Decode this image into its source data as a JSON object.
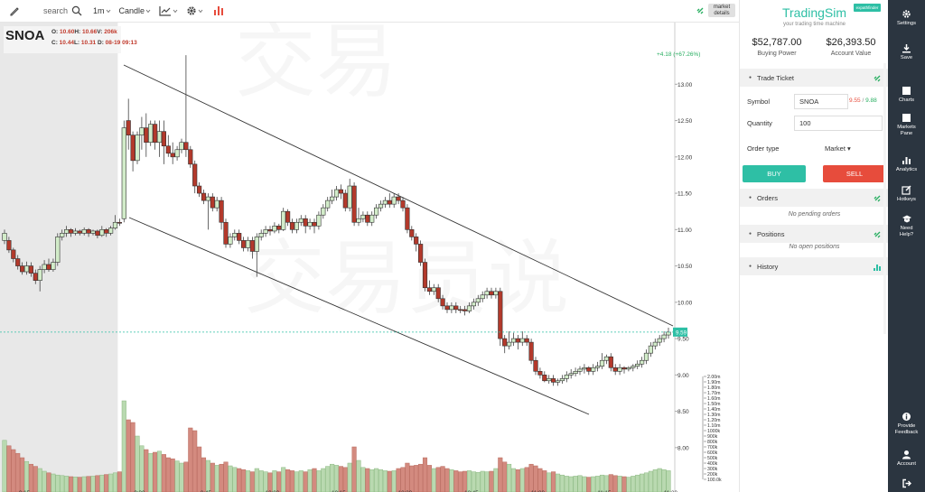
{
  "toolbar": {
    "search_placeholder": "search",
    "interval": "1m",
    "chart_style": "Candle"
  },
  "symbol": {
    "ticker": "SNOA",
    "o_label": "O:",
    "o_val": "10.60",
    "h_label": "H:",
    "h_val": "10.66",
    "v_label": "V:",
    "v_val": "206k",
    "c_label": "C:",
    "c_val": "10.44",
    "l_label": "L:",
    "l_val": "10.31",
    "d_label": "D:",
    "d_val": "08-19 09:13"
  },
  "market_details": "market details",
  "change_text": "+4.18 (+67.26%)",
  "last_price_label": "9.59",
  "chart_data": {
    "type": "candlestick",
    "y_ticks": [
      "13.00",
      "12.50",
      "12.00",
      "11.50",
      "11.00",
      "10.50",
      "10.00",
      "9.50",
      "9.00",
      "8.50",
      "8.00"
    ],
    "y_range": [
      7.7,
      13.6
    ],
    "volume_ticks": [
      "2.00m",
      "1.90m",
      "1.80m",
      "1.70m",
      "1.60m",
      "1.50m",
      "1.40m",
      "1.30m",
      "1.20m",
      "1.10m",
      "1000k",
      "900k",
      "800k",
      "700k",
      "600k",
      "500k",
      "400k",
      "300k",
      "200k",
      "100.0k"
    ],
    "volume_range": [
      0,
      2000
    ],
    "x_ticks": [
      "9:15",
      "9:30",
      "9:45",
      "10:00",
      "10:15",
      "10:30",
      "10:45",
      "11:00",
      "11:15",
      "11:30"
    ],
    "last_price": 9.59,
    "premarket_end_index": 26,
    "candles": [
      [
        10.95,
        10.85,
        11.0,
        10.8,
        820,
        "u"
      ],
      [
        10.85,
        10.72,
        10.9,
        10.68,
        720,
        "d"
      ],
      [
        10.72,
        10.6,
        10.75,
        10.55,
        650,
        "d"
      ],
      [
        10.6,
        10.5,
        10.65,
        10.45,
        580,
        "d"
      ],
      [
        10.5,
        10.42,
        10.55,
        10.38,
        500,
        "d"
      ],
      [
        10.42,
        10.5,
        10.56,
        10.38,
        430,
        "u"
      ],
      [
        10.5,
        10.4,
        10.55,
        10.35,
        380,
        "d"
      ],
      [
        10.4,
        10.3,
        10.45,
        10.25,
        340,
        "d"
      ],
      [
        10.3,
        10.45,
        10.5,
        10.15,
        300,
        "u"
      ],
      [
        10.45,
        10.52,
        10.58,
        10.4,
        250,
        "u"
      ],
      [
        10.52,
        10.45,
        10.6,
        10.42,
        220,
        "d"
      ],
      [
        10.45,
        10.55,
        10.6,
        10.42,
        200,
        "u"
      ],
      [
        10.55,
        10.9,
        10.95,
        10.5,
        180,
        "u"
      ],
      [
        10.9,
        10.95,
        11.0,
        10.85,
        170,
        "u"
      ],
      [
        10.95,
        11.0,
        11.05,
        10.9,
        160,
        "u"
      ],
      [
        11.0,
        10.95,
        11.02,
        10.9,
        150,
        "d"
      ],
      [
        10.95,
        10.98,
        11.02,
        10.92,
        145,
        "u"
      ],
      [
        10.98,
        10.95,
        11.0,
        10.92,
        140,
        "d"
      ],
      [
        10.95,
        11.0,
        11.03,
        10.92,
        150,
        "u"
      ],
      [
        11.0,
        10.95,
        11.02,
        10.9,
        155,
        "d"
      ],
      [
        10.95,
        10.98,
        11.0,
        10.92,
        160,
        "u"
      ],
      [
        10.98,
        10.92,
        11.0,
        10.88,
        170,
        "d"
      ],
      [
        10.92,
        11.0,
        11.05,
        10.9,
        180,
        "u"
      ],
      [
        11.0,
        10.95,
        11.02,
        10.9,
        190,
        "d"
      ],
      [
        10.95,
        11.02,
        11.05,
        10.92,
        200,
        "u"
      ],
      [
        11.02,
        11.1,
        11.2,
        11.0,
        220,
        "u"
      ],
      [
        11.1,
        11.1,
        11.15,
        11.05,
        240,
        "d"
      ],
      [
        11.15,
        12.4,
        12.5,
        11.1,
        1550,
        "u"
      ],
      [
        12.5,
        12.3,
        12.8,
        12.1,
        1200,
        "d"
      ],
      [
        12.3,
        11.95,
        12.35,
        11.8,
        1150,
        "d"
      ],
      [
        11.95,
        12.3,
        12.35,
        11.9,
        900,
        "u"
      ],
      [
        12.3,
        12.4,
        12.55,
        12.1,
        720,
        "u"
      ],
      [
        12.4,
        12.2,
        12.6,
        12.0,
        650,
        "d"
      ],
      [
        12.2,
        12.45,
        12.5,
        12.15,
        580,
        "u"
      ],
      [
        12.45,
        12.2,
        12.5,
        12.1,
        600,
        "d"
      ],
      [
        12.2,
        12.35,
        12.5,
        12.0,
        620,
        "u"
      ],
      [
        12.35,
        12.15,
        12.5,
        11.9,
        560,
        "d"
      ],
      [
        12.15,
        12.05,
        12.3,
        12.0,
        500,
        "d"
      ],
      [
        12.05,
        12.0,
        12.2,
        11.9,
        480,
        "d"
      ],
      [
        12.0,
        12.1,
        12.15,
        11.95,
        440,
        "u"
      ],
      [
        12.1,
        12.2,
        12.25,
        12.05,
        400,
        "u"
      ],
      [
        12.2,
        12.1,
        13.4,
        12.0,
        420,
        "d"
      ],
      [
        12.1,
        11.9,
        12.15,
        11.85,
        1050,
        "d"
      ],
      [
        11.9,
        11.6,
        11.95,
        11.5,
        1000,
        "d"
      ],
      [
        11.6,
        11.5,
        11.65,
        11.45,
        700,
        "d"
      ],
      [
        11.5,
        11.4,
        11.55,
        11.35,
        500,
        "d"
      ],
      [
        11.4,
        11.45,
        11.5,
        11.0,
        450,
        "u"
      ],
      [
        11.45,
        11.3,
        11.5,
        11.25,
        400,
        "d"
      ],
      [
        11.3,
        11.4,
        11.45,
        11.25,
        360,
        "u"
      ],
      [
        11.4,
        11.1,
        11.45,
        11.0,
        380,
        "d"
      ],
      [
        11.1,
        10.8,
        11.15,
        10.75,
        420,
        "d"
      ],
      [
        10.8,
        10.9,
        10.95,
        10.75,
        350,
        "u"
      ],
      [
        10.9,
        10.95,
        11.0,
        10.85,
        320,
        "u"
      ],
      [
        10.95,
        10.85,
        11.0,
        10.8,
        300,
        "d"
      ],
      [
        10.85,
        10.75,
        10.9,
        10.7,
        280,
        "d"
      ],
      [
        10.75,
        10.85,
        10.9,
        10.7,
        260,
        "u"
      ],
      [
        10.85,
        10.7,
        10.9,
        10.6,
        240,
        "d"
      ],
      [
        10.7,
        10.9,
        10.95,
        10.35,
        300,
        "u"
      ],
      [
        10.9,
        10.95,
        11.0,
        10.85,
        260,
        "u"
      ],
      [
        10.95,
        11.0,
        11.05,
        10.9,
        240,
        "u"
      ],
      [
        11.0,
        10.98,
        11.05,
        10.92,
        220,
        "d"
      ],
      [
        10.98,
        11.05,
        11.1,
        10.95,
        260,
        "u"
      ],
      [
        11.05,
        11.0,
        11.08,
        10.95,
        240,
        "d"
      ],
      [
        11.0,
        11.25,
        11.3,
        10.98,
        320,
        "u"
      ],
      [
        11.25,
        11.1,
        11.28,
        11.05,
        280,
        "d"
      ],
      [
        11.1,
        11.0,
        11.15,
        10.95,
        260,
        "d"
      ],
      [
        11.0,
        11.1,
        11.15,
        10.95,
        240,
        "u"
      ],
      [
        11.1,
        11.15,
        11.2,
        11.05,
        260,
        "u"
      ],
      [
        11.15,
        11.05,
        11.2,
        10.95,
        240,
        "d"
      ],
      [
        11.05,
        11.1,
        11.15,
        11.0,
        280,
        "u"
      ],
      [
        11.1,
        11.05,
        11.15,
        10.95,
        300,
        "d"
      ],
      [
        11.05,
        11.2,
        11.25,
        11.0,
        260,
        "u"
      ],
      [
        11.2,
        11.3,
        11.35,
        11.15,
        300,
        "u"
      ],
      [
        11.3,
        11.4,
        11.45,
        11.25,
        340,
        "u"
      ],
      [
        11.4,
        11.45,
        11.55,
        11.35,
        380,
        "u"
      ],
      [
        11.45,
        11.55,
        11.6,
        11.4,
        360,
        "u"
      ],
      [
        11.55,
        11.5,
        11.62,
        11.42,
        340,
        "d"
      ],
      [
        11.5,
        11.3,
        11.55,
        11.25,
        320,
        "d"
      ],
      [
        11.3,
        11.6,
        11.7,
        11.25,
        400,
        "u"
      ],
      [
        11.6,
        11.1,
        11.65,
        11.05,
        700,
        "d"
      ],
      [
        11.1,
        11.15,
        11.3,
        11.05,
        450,
        "u"
      ],
      [
        11.15,
        11.2,
        11.25,
        11.1,
        320,
        "u"
      ],
      [
        11.2,
        11.1,
        11.25,
        11.05,
        300,
        "d"
      ],
      [
        11.1,
        11.2,
        11.25,
        11.05,
        280,
        "u"
      ],
      [
        11.2,
        11.3,
        11.35,
        11.15,
        300,
        "u"
      ],
      [
        11.3,
        11.35,
        11.4,
        11.25,
        280,
        "u"
      ],
      [
        11.35,
        11.4,
        11.45,
        11.3,
        260,
        "u"
      ],
      [
        11.4,
        11.35,
        11.5,
        11.3,
        250,
        "d"
      ],
      [
        11.35,
        11.45,
        11.5,
        11.3,
        260,
        "u"
      ],
      [
        11.45,
        11.4,
        11.5,
        11.35,
        300,
        "d"
      ],
      [
        11.4,
        11.3,
        11.45,
        11.25,
        320,
        "d"
      ],
      [
        11.3,
        11.0,
        11.35,
        10.95,
        400,
        "d"
      ],
      [
        11.0,
        10.9,
        11.05,
        10.85,
        350,
        "d"
      ],
      [
        10.9,
        10.8,
        10.95,
        10.7,
        360,
        "d"
      ],
      [
        10.8,
        10.55,
        10.85,
        10.5,
        380,
        "d"
      ],
      [
        10.55,
        10.2,
        10.6,
        10.15,
        500,
        "d"
      ],
      [
        10.2,
        10.15,
        10.3,
        10.1,
        360,
        "d"
      ],
      [
        10.15,
        10.2,
        10.25,
        10.1,
        300,
        "u"
      ],
      [
        10.2,
        10.05,
        10.25,
        10.0,
        320,
        "d"
      ],
      [
        10.05,
        9.95,
        10.1,
        9.9,
        340,
        "d"
      ],
      [
        9.95,
        9.9,
        10.0,
        9.85,
        300,
        "d"
      ],
      [
        9.9,
        9.95,
        10.0,
        9.85,
        280,
        "u"
      ],
      [
        9.95,
        9.9,
        10.0,
        9.85,
        260,
        "d"
      ],
      [
        9.9,
        9.9,
        9.95,
        9.85,
        240,
        "d"
      ],
      [
        9.9,
        9.88,
        9.95,
        9.82,
        250,
        "d"
      ],
      [
        9.88,
        9.95,
        10.0,
        9.85,
        260,
        "u"
      ],
      [
        9.95,
        10.0,
        10.05,
        9.9,
        240,
        "u"
      ],
      [
        10.0,
        10.05,
        10.1,
        9.95,
        230,
        "u"
      ],
      [
        10.05,
        10.1,
        10.15,
        10.0,
        250,
        "u"
      ],
      [
        10.1,
        10.15,
        10.2,
        10.05,
        240,
        "u"
      ],
      [
        10.15,
        10.1,
        10.2,
        10.05,
        250,
        "d"
      ],
      [
        10.1,
        10.15,
        10.2,
        10.05,
        300,
        "u"
      ],
      [
        10.15,
        9.5,
        10.2,
        9.4,
        500,
        "d"
      ],
      [
        9.5,
        9.4,
        9.55,
        9.3,
        420,
        "d"
      ],
      [
        9.4,
        9.45,
        9.6,
        9.35,
        380,
        "u"
      ],
      [
        9.45,
        9.5,
        9.58,
        9.4,
        300,
        "u"
      ],
      [
        9.5,
        9.45,
        9.55,
        9.35,
        280,
        "d"
      ],
      [
        9.45,
        9.5,
        9.6,
        9.4,
        300,
        "u"
      ],
      [
        9.5,
        9.45,
        9.55,
        9.4,
        320,
        "d"
      ],
      [
        9.45,
        9.2,
        9.5,
        9.15,
        380,
        "d"
      ],
      [
        9.2,
        9.05,
        9.25,
        9.0,
        350,
        "d"
      ],
      [
        9.05,
        9.0,
        9.1,
        8.95,
        300,
        "d"
      ],
      [
        9.0,
        8.92,
        9.05,
        8.9,
        260,
        "d"
      ],
      [
        8.92,
        8.95,
        9.0,
        8.88,
        220,
        "u"
      ],
      [
        8.95,
        8.9,
        9.0,
        8.85,
        240,
        "d"
      ],
      [
        8.9,
        8.92,
        8.95,
        8.85,
        200,
        "u"
      ],
      [
        8.92,
        8.95,
        9.0,
        8.88,
        180,
        "u"
      ],
      [
        8.95,
        9.0,
        9.05,
        8.9,
        160,
        "u"
      ],
      [
        9.0,
        9.02,
        9.08,
        8.95,
        150,
        "u"
      ],
      [
        9.02,
        9.05,
        9.1,
        8.98,
        160,
        "u"
      ],
      [
        9.05,
        9.08,
        9.12,
        9.0,
        170,
        "u"
      ],
      [
        9.08,
        9.1,
        9.15,
        9.02,
        150,
        "u"
      ],
      [
        9.1,
        9.05,
        9.12,
        9.0,
        140,
        "d"
      ],
      [
        9.05,
        9.1,
        9.15,
        9.0,
        150,
        "u"
      ],
      [
        9.1,
        9.12,
        9.18,
        9.05,
        160,
        "u"
      ],
      [
        9.12,
        9.2,
        9.3,
        9.08,
        180,
        "u"
      ],
      [
        9.2,
        9.25,
        9.28,
        9.15,
        170,
        "u"
      ],
      [
        9.25,
        9.1,
        9.3,
        9.05,
        190,
        "d"
      ],
      [
        9.1,
        9.05,
        9.15,
        9.0,
        170,
        "d"
      ],
      [
        9.05,
        9.1,
        9.15,
        9.0,
        160,
        "u"
      ],
      [
        9.1,
        9.08,
        9.12,
        9.02,
        150,
        "d"
      ],
      [
        9.08,
        9.1,
        9.12,
        9.05,
        140,
        "u"
      ],
      [
        9.1,
        9.12,
        9.15,
        9.05,
        160,
        "u"
      ],
      [
        9.12,
        9.15,
        9.2,
        9.08,
        180,
        "u"
      ],
      [
        9.15,
        9.2,
        9.25,
        9.1,
        200,
        "u"
      ],
      [
        9.2,
        9.3,
        9.35,
        9.15,
        220,
        "u"
      ],
      [
        9.3,
        9.4,
        9.45,
        9.25,
        250,
        "u"
      ],
      [
        9.4,
        9.45,
        9.5,
        9.35,
        280,
        "u"
      ],
      [
        9.45,
        9.5,
        9.55,
        9.4,
        300,
        "u"
      ],
      [
        9.5,
        9.55,
        9.6,
        9.45,
        280,
        "u"
      ],
      [
        9.55,
        9.59,
        9.65,
        9.5,
        260,
        "u"
      ]
    ]
  },
  "panel": {
    "brand": "TradingSim",
    "tagline": "your trading time machine",
    "badge": "expathfinder",
    "buying_power": "$52,787.00",
    "buying_power_label": "Buying Power",
    "account_value": "$26,393.50",
    "account_value_label": "Account Value",
    "trade_ticket": "Trade Ticket",
    "symbol_label": "Symbol",
    "symbol_value": "SNOA",
    "bid": "9.55",
    "ask": "9.88",
    "quantity_label": "Quantity",
    "quantity_value": "100",
    "order_type_label": "Order type",
    "order_type_value": "Market",
    "buy": "BUY",
    "sell": "SELL",
    "orders": "Orders",
    "no_orders": "No pending orders",
    "positions": "Positions",
    "no_positions": "No open positions",
    "history": "History"
  },
  "sidebar": {
    "settings": "Settings",
    "save": "Save",
    "charts": "Charts",
    "markets": "Markets Pane",
    "analytics": "Analytics",
    "hotkeys": "Hotkeys",
    "help": "Need Help?",
    "feedback": "Provide Feedback",
    "account": "Account"
  }
}
